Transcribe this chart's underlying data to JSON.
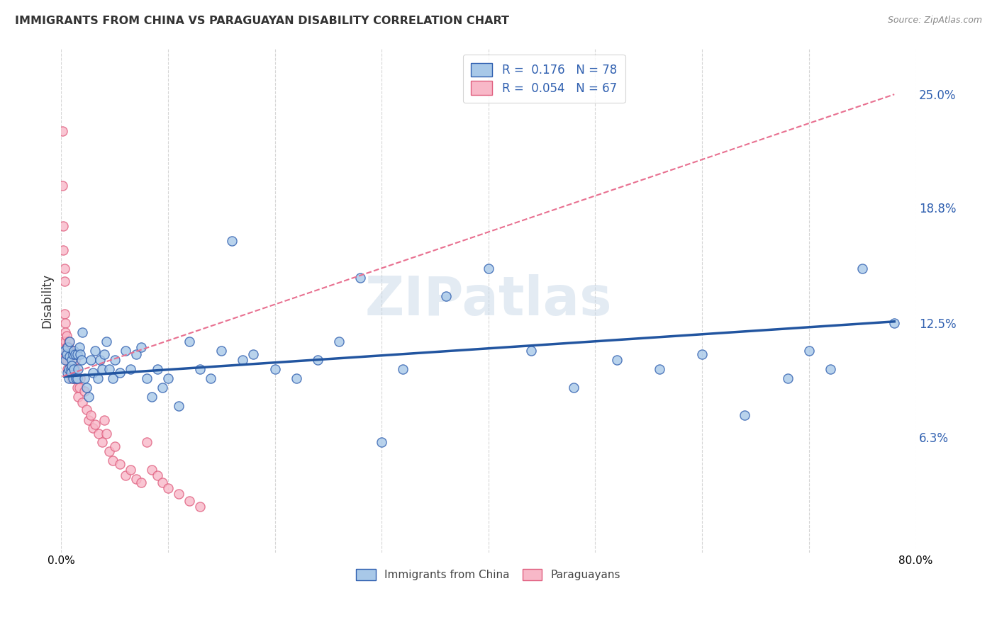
{
  "title": "IMMIGRANTS FROM CHINA VS PARAGUAYAN DISABILITY CORRELATION CHART",
  "source": "Source: ZipAtlas.com",
  "ylabel": "Disability",
  "ytick_labels": [
    "6.3%",
    "12.5%",
    "18.8%",
    "25.0%"
  ],
  "ytick_values": [
    0.063,
    0.125,
    0.188,
    0.25
  ],
  "xlim": [
    0.0,
    0.8
  ],
  "ylim": [
    0.0,
    0.275
  ],
  "legend_label_china": "Immigrants from China",
  "legend_label_paraguay": "Paraguayans",
  "legend_R_china": "R =  0.176",
  "legend_N_china": "N = 78",
  "legend_R_paraguay": "R =  0.054",
  "legend_N_paraguay": "N = 67",
  "color_china_fill": "#a8c8e8",
  "color_china_edge": "#3060b0",
  "color_paraguay_fill": "#f8b8c8",
  "color_paraguay_edge": "#e06080",
  "color_china_line": "#2255a0",
  "color_paraguay_line": "#e87090",
  "watermark": "ZIPatlas",
  "background_color": "#ffffff",
  "china_x": [
    0.003,
    0.004,
    0.005,
    0.006,
    0.006,
    0.007,
    0.007,
    0.008,
    0.008,
    0.009,
    0.009,
    0.01,
    0.01,
    0.011,
    0.011,
    0.012,
    0.012,
    0.013,
    0.014,
    0.015,
    0.015,
    0.016,
    0.017,
    0.018,
    0.019,
    0.02,
    0.022,
    0.024,
    0.026,
    0.028,
    0.03,
    0.032,
    0.034,
    0.036,
    0.038,
    0.04,
    0.042,
    0.045,
    0.048,
    0.05,
    0.055,
    0.06,
    0.065,
    0.07,
    0.075,
    0.08,
    0.085,
    0.09,
    0.095,
    0.1,
    0.11,
    0.12,
    0.13,
    0.14,
    0.15,
    0.16,
    0.17,
    0.18,
    0.2,
    0.22,
    0.24,
    0.26,
    0.28,
    0.3,
    0.32,
    0.36,
    0.4,
    0.44,
    0.48,
    0.52,
    0.56,
    0.6,
    0.64,
    0.68,
    0.7,
    0.72,
    0.75,
    0.78
  ],
  "china_y": [
    0.11,
    0.105,
    0.108,
    0.112,
    0.098,
    0.095,
    0.1,
    0.115,
    0.107,
    0.1,
    0.098,
    0.105,
    0.102,
    0.108,
    0.095,
    0.1,
    0.11,
    0.108,
    0.095,
    0.108,
    0.095,
    0.1,
    0.112,
    0.108,
    0.105,
    0.12,
    0.095,
    0.09,
    0.085,
    0.105,
    0.098,
    0.11,
    0.095,
    0.105,
    0.1,
    0.108,
    0.115,
    0.1,
    0.095,
    0.105,
    0.098,
    0.11,
    0.1,
    0.108,
    0.112,
    0.095,
    0.085,
    0.1,
    0.09,
    0.095,
    0.08,
    0.115,
    0.1,
    0.095,
    0.11,
    0.17,
    0.105,
    0.108,
    0.1,
    0.095,
    0.105,
    0.115,
    0.15,
    0.06,
    0.1,
    0.14,
    0.155,
    0.11,
    0.09,
    0.105,
    0.1,
    0.108,
    0.075,
    0.095,
    0.11,
    0.1,
    0.155,
    0.125
  ],
  "paraguay_x": [
    0.001,
    0.001,
    0.002,
    0.002,
    0.002,
    0.003,
    0.003,
    0.003,
    0.004,
    0.004,
    0.004,
    0.004,
    0.005,
    0.005,
    0.005,
    0.005,
    0.006,
    0.006,
    0.006,
    0.007,
    0.007,
    0.007,
    0.008,
    0.008,
    0.008,
    0.009,
    0.009,
    0.01,
    0.01,
    0.01,
    0.011,
    0.011,
    0.012,
    0.013,
    0.013,
    0.014,
    0.015,
    0.016,
    0.017,
    0.018,
    0.02,
    0.022,
    0.024,
    0.026,
    0.028,
    0.03,
    0.032,
    0.035,
    0.038,
    0.04,
    0.042,
    0.045,
    0.048,
    0.05,
    0.055,
    0.06,
    0.065,
    0.07,
    0.075,
    0.08,
    0.085,
    0.09,
    0.095,
    0.1,
    0.11,
    0.12,
    0.13
  ],
  "paraguay_y": [
    0.23,
    0.2,
    0.178,
    0.165,
    0.115,
    0.155,
    0.148,
    0.13,
    0.125,
    0.12,
    0.115,
    0.108,
    0.112,
    0.105,
    0.118,
    0.11,
    0.105,
    0.108,
    0.1,
    0.115,
    0.108,
    0.112,
    0.105,
    0.098,
    0.11,
    0.1,
    0.108,
    0.095,
    0.102,
    0.098,
    0.108,
    0.1,
    0.095,
    0.105,
    0.1,
    0.095,
    0.09,
    0.085,
    0.09,
    0.095,
    0.082,
    0.088,
    0.078,
    0.072,
    0.075,
    0.068,
    0.07,
    0.065,
    0.06,
    0.072,
    0.065,
    0.055,
    0.05,
    0.058,
    0.048,
    0.042,
    0.045,
    0.04,
    0.038,
    0.06,
    0.045,
    0.042,
    0.038,
    0.035,
    0.032,
    0.028,
    0.025
  ],
  "china_trendline_x": [
    0.003,
    0.78
  ],
  "china_trendline_y": [
    0.096,
    0.126
  ],
  "paraguay_trendline_x": [
    0.001,
    0.78
  ],
  "paraguay_trendline_y": [
    0.096,
    0.25
  ]
}
